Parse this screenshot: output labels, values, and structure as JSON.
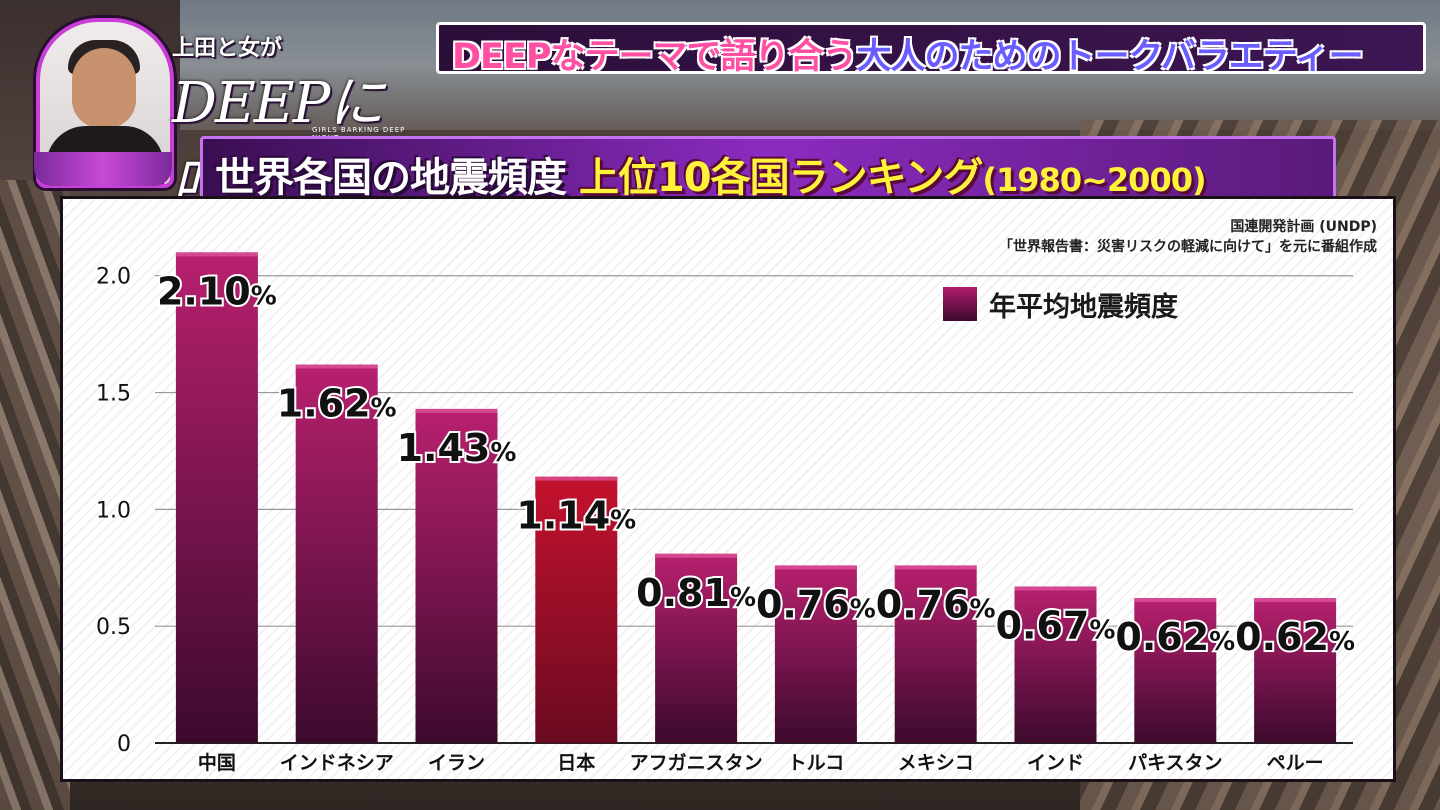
{
  "show": {
    "logo_line1": "上田と女が",
    "logo_main": "DEEPに吠える夜",
    "logo_sub": "GIRLS BARKING DEEP NIGHT"
  },
  "banner": {
    "part1": "DEEPなテーマで語り合う",
    "part2": "大人のためのトークバラエティー"
  },
  "title": {
    "part1": "世界各国の地震頻度",
    "part2": "上位10各国ランキング",
    "part3": "(1980~2000)"
  },
  "source": {
    "line1": "国連開発計画 (UNDP)",
    "line2": "「世界報告書：災害リスクの軽減に向けて」を元に番組作成"
  },
  "colors": {
    "bar_top": "#b8206f",
    "bar_bottom": "#3c0a2c",
    "bar_highlight_top": "#c4122e",
    "bar_highlight_bottom": "#6a0a20"
  },
  "chart_data": {
    "type": "bar",
    "legend_label": "年平均地震頻度",
    "legend_position": "top-right",
    "grid": true,
    "categories": [
      "中国",
      "インドネシア",
      "イラン",
      "日本",
      "アフガニスタン",
      "トルコ",
      "メキシコ",
      "インド",
      "パキスタン",
      "ペルー"
    ],
    "series": [
      {
        "name": "年平均地震頻度",
        "values": [
          2.1,
          1.62,
          1.43,
          1.14,
          0.81,
          0.76,
          0.76,
          0.67,
          0.62,
          0.62
        ]
      }
    ],
    "value_labels": [
      "2.10",
      "1.62",
      "1.43",
      "1.14",
      "0.81",
      "0.76",
      "0.76",
      "0.67",
      "0.62",
      "0.62"
    ],
    "value_unit": "%",
    "highlight_category": "日本",
    "yticks": [
      "0",
      "0.5",
      "1.0",
      "1.5",
      "2.0"
    ],
    "ylim": [
      0,
      2.2
    ]
  }
}
